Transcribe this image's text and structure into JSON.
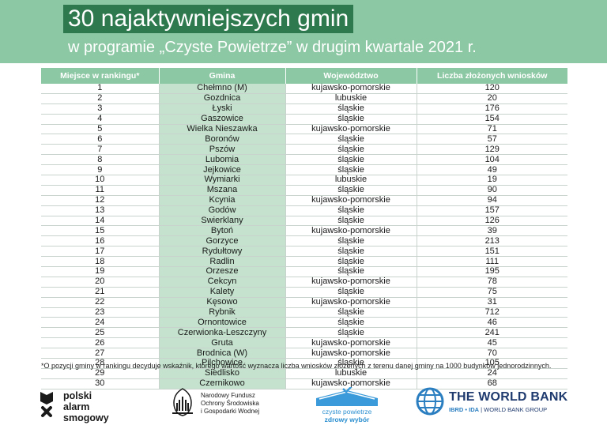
{
  "header": {
    "title": "30 najaktywniejszych gmin",
    "subtitle": "w programie „Czyste Powietrze” w drugim kwartale 2021 r."
  },
  "table": {
    "columns": [
      "Miejsce w rankingu*",
      "Gmina",
      "Województwo",
      "Liczba złożonych wniosków"
    ],
    "rows": [
      [
        "1",
        "Chełmno (M)",
        "kujawsko-pomorskie",
        "120"
      ],
      [
        "2",
        "Gozdnica",
        "lubuskie",
        "20"
      ],
      [
        "3",
        "Łyski",
        "śląskie",
        "176"
      ],
      [
        "4",
        "Gaszowice",
        "śląskie",
        "154"
      ],
      [
        "5",
        "Wielka Nieszawka",
        "kujawsko-pomorskie",
        "71"
      ],
      [
        "6",
        "Boronów",
        "śląskie",
        "57"
      ],
      [
        "7",
        "Pszów",
        "śląskie",
        "129"
      ],
      [
        "8",
        "Lubomia",
        "śląskie",
        "104"
      ],
      [
        "9",
        "Jejkowice",
        "śląskie",
        "49"
      ],
      [
        "10",
        "Wymiarki",
        "lubuskie",
        "19"
      ],
      [
        "11",
        "Mszana",
        "śląskie",
        "90"
      ],
      [
        "12",
        "Kcynia",
        "kujawsko-pomorskie",
        "94"
      ],
      [
        "13",
        "Godów",
        "śląskie",
        "157"
      ],
      [
        "14",
        "Świerklany",
        "śląskie",
        "126"
      ],
      [
        "15",
        "Bytoń",
        "kujawsko-pomorskie",
        "39"
      ],
      [
        "16",
        "Gorzyce",
        "śląskie",
        "213"
      ],
      [
        "17",
        "Rydułtowy",
        "śląskie",
        "151"
      ],
      [
        "18",
        "Radlin",
        "śląskie",
        "111"
      ],
      [
        "19",
        "Orzesze",
        "śląskie",
        "195"
      ],
      [
        "20",
        "Cekcyn",
        "kujawsko-pomorskie",
        "78"
      ],
      [
        "21",
        "Kalety",
        "śląskie",
        "75"
      ],
      [
        "22",
        "Kęsowo",
        "kujawsko-pomorskie",
        "31"
      ],
      [
        "23",
        "Rybnik",
        "śląskie",
        "712"
      ],
      [
        "24",
        "Ornontowice",
        "śląskie",
        "46"
      ],
      [
        "25",
        "Czerwionka-Leszczyny",
        "śląskie",
        "241"
      ],
      [
        "26",
        "Gruta",
        "kujawsko-pomorskie",
        "45"
      ],
      [
        "27",
        "Brodnica (W)",
        "kujawsko-pomorskie",
        "70"
      ],
      [
        "28",
        "Pilchowice",
        "śląskie",
        "105"
      ],
      [
        "29",
        "Siedlisko",
        "lubuskie",
        "24"
      ],
      [
        "30",
        "Czernikowo",
        "kujawsko-pomorskie",
        "68"
      ]
    ]
  },
  "footnote": "*O pozycji gminy w rankingu decyduje wskaźnik, którego wartość wyznacza liczba wniosków złożonych z terenu danej gminy na 1000 budynków jednorodzinnych.",
  "logos": {
    "pas": [
      "polski",
      "alarm",
      "smogowy"
    ],
    "nfos": [
      "Narodowy Fundusz",
      "Ochrony Środowiska",
      "i Gospodarki Wodnej"
    ],
    "cp": [
      "czyste powietrze",
      "zdrowy wybór"
    ],
    "wb_name": "THE WORLD BANK",
    "wb_sub_a": "IBRD • IDA",
    "wb_sub_b": " | WORLD BANK GROUP"
  },
  "colors": {
    "banner": "#8dc8a4",
    "title_box": "#2e7a4e",
    "gmina_column": "#c4e2cd"
  }
}
